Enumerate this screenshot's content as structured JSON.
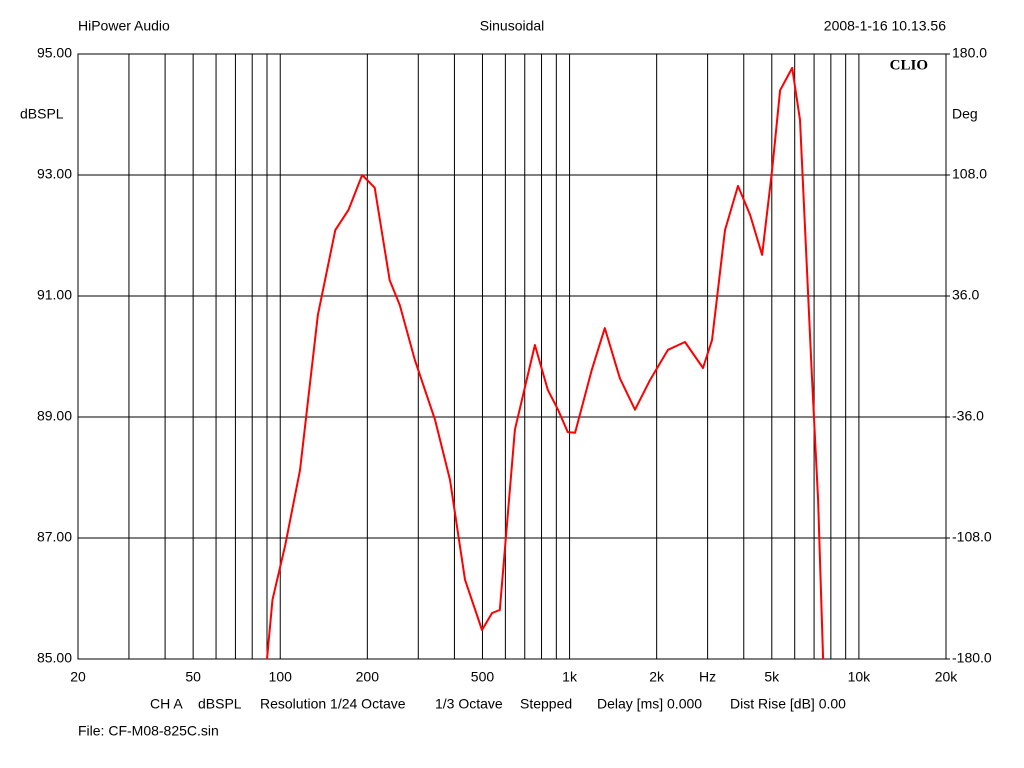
{
  "chart_data": {
    "type": "line",
    "header_left": "HiPower Audio",
    "title": "Sinusoidal",
    "header_right": "2008-1-16 10.13.56",
    "logo": "CLIO",
    "ylabel": "dBSPL",
    "y2label": "Deg",
    "footer": [
      "CH A",
      "dBSPL",
      "Resolution 1/24 Octave",
      "1/3 Octave",
      "Stepped",
      "Delay [ms] 0.000",
      "Dist Rise [dB] 0.00"
    ],
    "file": "File: CF-M08-825C.sin",
    "xscale": "log",
    "grid": true,
    "xlim": [
      20,
      20000
    ],
    "xticks": [
      20,
      50,
      100,
      200,
      500,
      {
        "value": 1000,
        "label": "1k"
      },
      {
        "value": 2000,
        "label": "2k"
      },
      {
        "value": 3000,
        "label": "Hz"
      },
      {
        "value": 5000,
        "label": "5k"
      },
      {
        "value": 10000,
        "label": "10k"
      },
      {
        "value": 20000,
        "label": "20k"
      }
    ],
    "x_minor_ticks": [
      30,
      40,
      60,
      70,
      80,
      90,
      300,
      400,
      600,
      700,
      800,
      900,
      4000,
      6000,
      7000,
      8000,
      9000
    ],
    "ylim": [
      85,
      95
    ],
    "yticks": [
      {
        "value": 95,
        "label": "95.00"
      },
      {
        "value": 93,
        "label": "93.00"
      },
      {
        "value": 91,
        "label": "91.00"
      },
      {
        "value": 89,
        "label": "89.00"
      },
      {
        "value": 87,
        "label": "87.00"
      },
      {
        "value": 85,
        "label": "85.00"
      }
    ],
    "y2lim": [
      -180,
      180
    ],
    "y2ticks": [
      {
        "value": 180,
        "label": "180.0"
      },
      {
        "value": 108,
        "label": "108.0"
      },
      {
        "value": 36,
        "label": "36.0"
      },
      {
        "value": -36,
        "label": "-36.0"
      },
      {
        "value": -108,
        "label": "-108.0"
      },
      {
        "value": -180,
        "label": "-180.0"
      }
    ],
    "x": [
      90,
      94,
      104,
      117,
      135,
      155,
      172,
      192,
      212,
      239,
      259,
      292,
      343,
      386,
      435,
      498,
      540,
      574,
      647,
      759,
      841,
      912,
      986,
      1045,
      1194,
      1324,
      1493,
      1683,
      1897,
      2188,
      2506,
      2891,
      3106,
      3444,
      3820,
      4208,
      4627,
      5012,
      5340,
      5880,
      6260,
      6890,
      7230,
      7520
    ],
    "series": [
      {
        "color": "#ff0000",
        "values": [
          85.0,
          85.98,
          86.88,
          88.12,
          90.69,
          92.09,
          92.42,
          93.0,
          92.79,
          91.26,
          90.85,
          89.94,
          88.95,
          87.96,
          86.31,
          85.48,
          85.76,
          85.81,
          88.79,
          90.19,
          89.45,
          89.12,
          88.75,
          88.74,
          89.78,
          90.47,
          89.64,
          89.12,
          89.61,
          90.11,
          90.24,
          89.81,
          90.27,
          92.09,
          92.82,
          92.34,
          91.68,
          93.08,
          94.4,
          94.77,
          93.91,
          89.61,
          87.63,
          85.0
        ]
      }
    ]
  }
}
